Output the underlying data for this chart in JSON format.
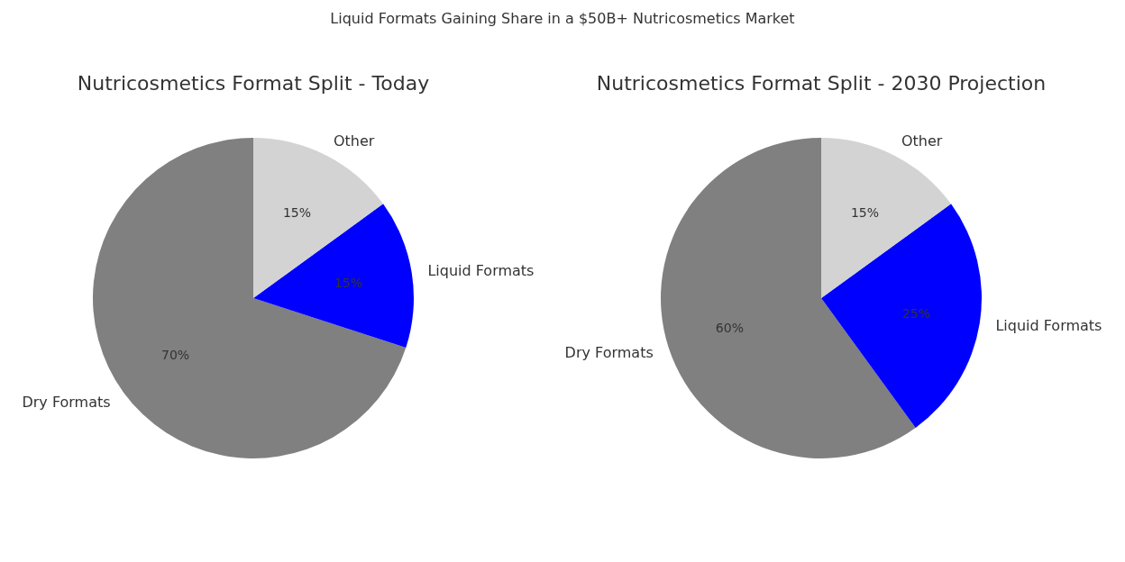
{
  "chart_data": [
    {
      "type": "pie",
      "title": "Nutricosmetics Format Split - Today",
      "annotations": [
        "Liquid Formats Gaining Share in a $50B+ Nutricosmetics Market"
      ],
      "categories": [
        "Dry Formats",
        "Liquid Formats",
        "Other"
      ],
      "values": [
        70,
        15,
        15
      ],
      "colors": [
        "#808080",
        "#0000ff",
        "#d3d3d3"
      ],
      "value_labels": [
        "70%",
        "15%",
        "15%"
      ]
    },
    {
      "type": "pie",
      "title": "Nutricosmetics Format Split - 2030 Projection",
      "categories": [
        "Dry Formats",
        "Liquid Formats",
        "Other"
      ],
      "values": [
        60,
        25,
        15
      ],
      "colors": [
        "#808080",
        "#0000ff",
        "#d3d3d3"
      ],
      "value_labels": [
        "60%",
        "25%",
        "15%"
      ]
    }
  ]
}
